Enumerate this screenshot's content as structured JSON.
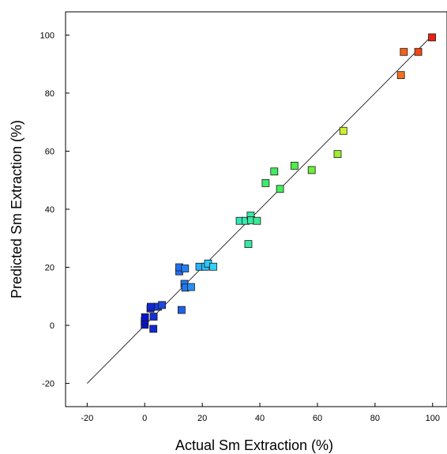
{
  "chart_data": {
    "type": "scatter",
    "xlabel": "Actual Sm Extraction (%)",
    "ylabel": "Predicted Sm Extraction (%)",
    "xlim": [
      -27.5,
      105
    ],
    "ylim": [
      -28,
      108
    ],
    "xticks": [
      -20,
      0,
      20,
      40,
      60,
      80,
      100
    ],
    "yticks": [
      -20,
      0,
      20,
      40,
      60,
      80,
      100
    ],
    "grid": false,
    "reference_line": {
      "x": [
        -20,
        100
      ],
      "y": [
        -20,
        100
      ],
      "color": "#000000"
    },
    "points": [
      {
        "x": 0.0,
        "y": 0.2,
        "color": "#0a14c8"
      },
      {
        "x": 0.0,
        "y": 1.5,
        "color": "#0a14c8"
      },
      {
        "x": 0.1,
        "y": 2.8,
        "color": "#0a14c8"
      },
      {
        "x": 2.0,
        "y": 5.8,
        "color": "#1128d2"
      },
      {
        "x": 2.1,
        "y": 6.4,
        "color": "#1128d2"
      },
      {
        "x": 3.0,
        "y": -1.2,
        "color": "#1128d2"
      },
      {
        "x": 3.1,
        "y": 3.0,
        "color": "#1430d8"
      },
      {
        "x": 4.6,
        "y": 6.4,
        "color": "#1a3cdc"
      },
      {
        "x": 6.0,
        "y": 7.0,
        "color": "#1e48e0"
      },
      {
        "x": 12.0,
        "y": 18.6,
        "color": "#2270f0"
      },
      {
        "x": 12.0,
        "y": 20.0,
        "color": "#2270f0"
      },
      {
        "x": 12.8,
        "y": 5.3,
        "color": "#2060e8"
      },
      {
        "x": 13.8,
        "y": 14.3,
        "color": "#2278f0"
      },
      {
        "x": 14.0,
        "y": 19.6,
        "color": "#2480f2"
      },
      {
        "x": 14.1,
        "y": 13.0,
        "color": "#2278f0"
      },
      {
        "x": 16.1,
        "y": 13.2,
        "color": "#2690f4"
      },
      {
        "x": 19.0,
        "y": 20.2,
        "color": "#28b4f6"
      },
      {
        "x": 21.0,
        "y": 20.2,
        "color": "#28bef8"
      },
      {
        "x": 22.0,
        "y": 21.3,
        "color": "#2cc8f8"
      },
      {
        "x": 23.8,
        "y": 20.2,
        "color": "#30d2fa"
      },
      {
        "x": 33.0,
        "y": 36.0,
        "color": "#32e6b8"
      },
      {
        "x": 35.0,
        "y": 36.0,
        "color": "#34e8b0"
      },
      {
        "x": 36.0,
        "y": 28.0,
        "color": "#36e8a4"
      },
      {
        "x": 36.8,
        "y": 37.8,
        "color": "#36e8a4"
      },
      {
        "x": 37.0,
        "y": 36.2,
        "color": "#38ea9c"
      },
      {
        "x": 39.0,
        "y": 36.0,
        "color": "#3cea94"
      },
      {
        "x": 42.0,
        "y": 49.0,
        "color": "#3cec6a"
      },
      {
        "x": 45.0,
        "y": 53.0,
        "color": "#40ec60"
      },
      {
        "x": 47.0,
        "y": 47.0,
        "color": "#44ec5c"
      },
      {
        "x": 52.0,
        "y": 55.0,
        "color": "#4cee48"
      },
      {
        "x": 58.0,
        "y": 53.5,
        "color": "#6cee3c"
      },
      {
        "x": 67.0,
        "y": 59.0,
        "color": "#9cee30"
      },
      {
        "x": 69.0,
        "y": 67.0,
        "color": "#ccf030"
      },
      {
        "x": 89.0,
        "y": 86.2,
        "color": "#f07020"
      },
      {
        "x": 90.0,
        "y": 94.2,
        "color": "#f46418"
      },
      {
        "x": 95.0,
        "y": 94.2,
        "color": "#f04818"
      },
      {
        "x": 99.8,
        "y": 99.2,
        "color": "#ec2010"
      }
    ]
  }
}
